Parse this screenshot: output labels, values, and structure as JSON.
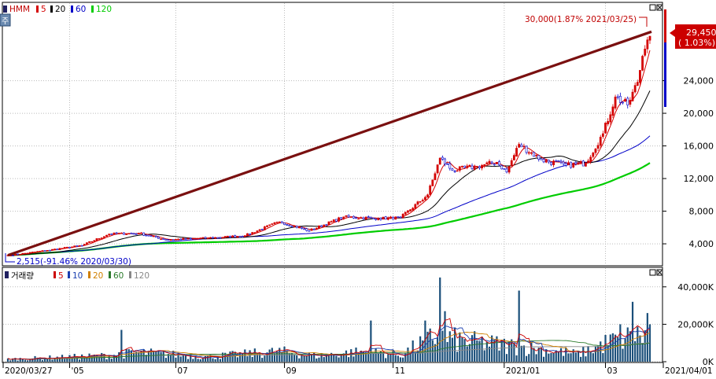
{
  "colors": {
    "up": "#d40000",
    "down": "#0000c8",
    "ma5": "#d40000",
    "ma20": "#000000",
    "ma60": "#0000c8",
    "ma120": "#00cc00",
    "trend": "#7a1010",
    "vol": "#1a4f7a",
    "vol_ma5": "#cc0000",
    "vol_ma10": "#1a3fb0",
    "vol_ma20": "#d08000",
    "vol_ma60": "#2a7a2a",
    "vol_ma120": "#888888",
    "tag_bg": "#cc0000"
  },
  "price_legend": {
    "ticker": "HMM",
    "items": [
      {
        "label": "5",
        "color": "#d40000"
      },
      {
        "label": "20",
        "color": "#000000"
      },
      {
        "label": "60",
        "color": "#0000c8"
      },
      {
        "label": "120",
        "color": "#00cc00"
      }
    ]
  },
  "volume_legend": {
    "title": "거래량",
    "items": [
      {
        "label": "5",
        "color": "#cc0000"
      },
      {
        "label": "10",
        "color": "#1a3fb0"
      },
      {
        "label": "20",
        "color": "#d08000"
      },
      {
        "label": "60",
        "color": "#2a7a2a"
      },
      {
        "label": "120",
        "color": "#888888"
      }
    ]
  },
  "annotations": {
    "high": "30,000(1.87% 2021/03/25)",
    "low": "2,515(-91.46% 2020/03/30)",
    "current_price": "29,450",
    "current_change": "( 1.03%)"
  },
  "chart_data": [
    {
      "type": "candlestick",
      "title": "",
      "x_range": [
        "2020/03/27",
        "2021/04/01"
      ],
      "ylim": [
        1500,
        33500
      ],
      "y_ticks": [
        "4,000",
        "8,000",
        "12,000",
        "16,000",
        "20,000",
        "24,000"
      ],
      "x_ticks": [
        "2020/03/27",
        "'05",
        "07",
        "09",
        "11",
        "2021/01",
        "03",
        "2021/04/01"
      ],
      "close_anchors": [
        {
          "date": "2020/03/27",
          "close": 2600
        },
        {
          "date": "2020/03/30",
          "close": 2600
        },
        {
          "date": "2020/04/20",
          "close": 3200
        },
        {
          "date": "2020/05/10",
          "close": 3800
        },
        {
          "date": "2020/05/25",
          "close": 5200
        },
        {
          "date": "2020/06/10",
          "close": 5300
        },
        {
          "date": "2020/06/25",
          "close": 4500
        },
        {
          "date": "2020/07/20",
          "close": 4700
        },
        {
          "date": "2020/08/10",
          "close": 5000
        },
        {
          "date": "2020/08/28",
          "close": 6700
        },
        {
          "date": "2020/09/15",
          "close": 5600
        },
        {
          "date": "2020/10/05",
          "close": 7300
        },
        {
          "date": "2020/10/25",
          "close": 7100
        },
        {
          "date": "2020/11/05",
          "close": 7200
        },
        {
          "date": "2020/11/20",
          "close": 10000
        },
        {
          "date": "2020/11/27",
          "close": 14500
        },
        {
          "date": "2020/12/05",
          "close": 13000
        },
        {
          "date": "2020/12/20",
          "close": 13500
        },
        {
          "date": "2020/12/30",
          "close": 14000
        },
        {
          "date": "2021/01/05",
          "close": 12800
        },
        {
          "date": "2021/01/12",
          "close": 16200
        },
        {
          "date": "2021/01/25",
          "close": 14300
        },
        {
          "date": "2021/02/08",
          "close": 13600
        },
        {
          "date": "2021/02/18",
          "close": 13900
        },
        {
          "date": "2021/03/01",
          "close": 17500
        },
        {
          "date": "2021/03/08",
          "close": 22000
        },
        {
          "date": "2021/03/15",
          "close": 21000
        },
        {
          "date": "2021/03/19",
          "close": 23800
        },
        {
          "date": "2021/03/23",
          "close": 27000
        },
        {
          "date": "2021/03/25",
          "close": 29000
        },
        {
          "date": "2021/03/26",
          "close": 29450
        }
      ],
      "trend_line": [
        {
          "date": "2020/03/27",
          "value": 2600
        },
        {
          "date": "2021/03/26",
          "value": 30000
        }
      ]
    },
    {
      "type": "bar",
      "title": "",
      "ylim": [
        0,
        50000
      ],
      "y_ticks": [
        "0K",
        "20,000K",
        "40,000K"
      ],
      "volume_anchors": [
        {
          "date": "2020/03/27",
          "value": 1500
        },
        {
          "date": "2020/05/20",
          "value": 3500
        },
        {
          "date": "2020/06/10",
          "value": 5500
        },
        {
          "date": "2020/07/20",
          "value": 3000
        },
        {
          "date": "2020/08/28",
          "value": 6000
        },
        {
          "date": "2020/09/20",
          "value": 3500
        },
        {
          "date": "2020/10/15",
          "value": 6000
        },
        {
          "date": "2020/11/05",
          "value": 4000
        },
        {
          "date": "2020/11/25",
          "value": 15000
        },
        {
          "date": "2020/12/10",
          "value": 12000
        },
        {
          "date": "2021/01/12",
          "value": 9000
        },
        {
          "date": "2021/02/15",
          "value": 4500
        },
        {
          "date": "2021/03/08",
          "value": 13000
        },
        {
          "date": "2021/03/25",
          "value": 16000
        }
      ],
      "volume_spikes": [
        {
          "date": "2020/11/27",
          "value": 45000
        },
        {
          "date": "2021/01/12",
          "value": 38000
        },
        {
          "date": "2020/10/20",
          "value": 22000
        },
        {
          "date": "2020/11/19",
          "value": 22000
        },
        {
          "date": "2020/12/01",
          "value": 27000
        },
        {
          "date": "2021/03/17",
          "value": 32000
        },
        {
          "date": "2021/03/25",
          "value": 26000
        },
        {
          "date": "2020/06/01",
          "value": 17000
        },
        {
          "date": "2021/03/10",
          "value": 20000
        },
        {
          "date": "2021/03/26",
          "value": 20000
        }
      ]
    }
  ]
}
